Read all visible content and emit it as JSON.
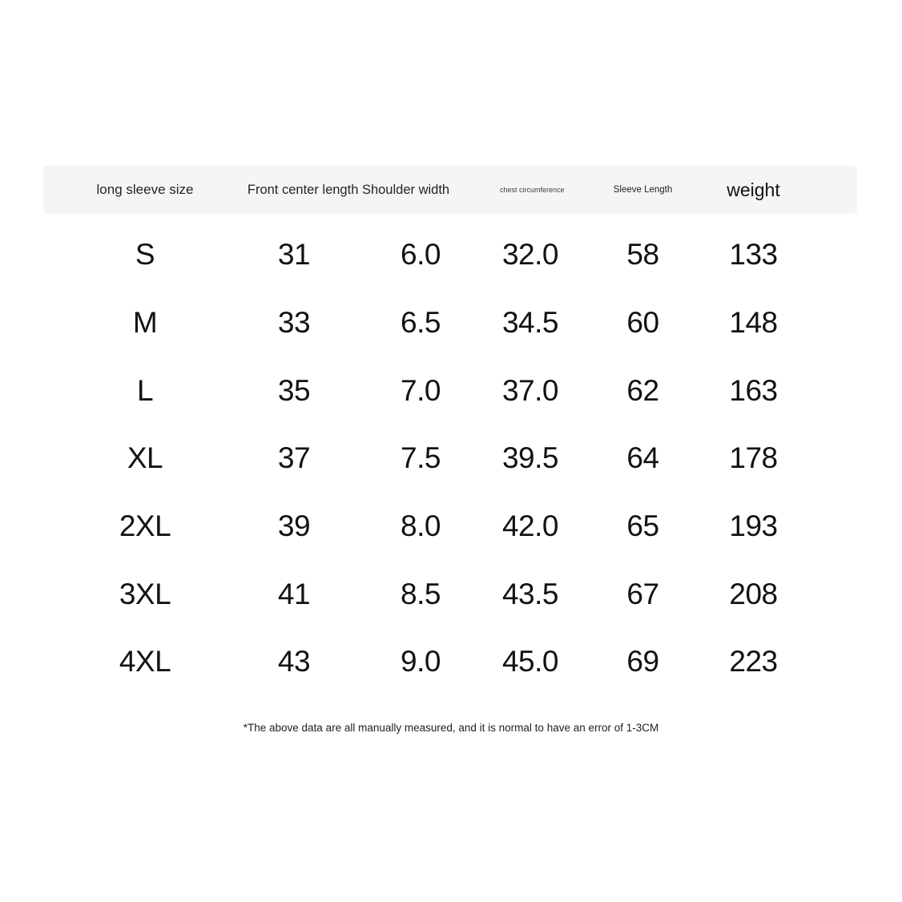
{
  "table": {
    "header": {
      "background_color": "#f5f5f4",
      "size_label": "long sleeve size",
      "merged_label": "Front center length Shoulder width",
      "chest_label": "chest circumference",
      "sleeve_label": "Sleeve Length",
      "weight_label": "weight"
    },
    "rows": [
      {
        "size": "S",
        "values": [
          "31",
          "6.0",
          "32.0",
          "58",
          "133"
        ]
      },
      {
        "size": "M",
        "values": [
          "33",
          "6.5",
          "34.5",
          "60",
          "148"
        ]
      },
      {
        "size": "L",
        "values": [
          "35",
          "7.0",
          "37.0",
          "62",
          "163"
        ]
      },
      {
        "size": "XL",
        "values": [
          "37",
          "7.5",
          "39.5",
          "64",
          "178"
        ]
      },
      {
        "size": "2XL",
        "values": [
          "39",
          "8.0",
          "42.0",
          "65",
          "193"
        ]
      },
      {
        "size": "3XL",
        "values": [
          "41",
          "8.5",
          "43.5",
          "67",
          "208"
        ]
      },
      {
        "size": "4XL",
        "values": [
          "43",
          "9.0",
          "45.0",
          "69",
          "223"
        ]
      }
    ],
    "footnote": "*The above data are all manually measured, and it is normal to have an error of 1-3CM"
  },
  "chart_data": {
    "type": "table",
    "title": "long sleeve size chart",
    "columns": [
      "long sleeve size",
      "Front center length",
      "Shoulder width",
      "chest circumference",
      "Sleeve Length",
      "weight"
    ],
    "rows": [
      [
        "S",
        31,
        6.0,
        32.0,
        58,
        133
      ],
      [
        "M",
        33,
        6.5,
        34.5,
        60,
        148
      ],
      [
        "L",
        35,
        7.0,
        37.0,
        62,
        163
      ],
      [
        "XL",
        37,
        7.5,
        39.5,
        64,
        178
      ],
      [
        "2XL",
        39,
        8.0,
        42.0,
        65,
        193
      ],
      [
        "3XL",
        41,
        8.5,
        43.5,
        67,
        208
      ],
      [
        "4XL",
        43,
        9.0,
        45.0,
        69,
        223
      ]
    ],
    "annotations": [
      "*The above data are all manually measured, and it is normal to have an error of 1-3CM"
    ]
  }
}
